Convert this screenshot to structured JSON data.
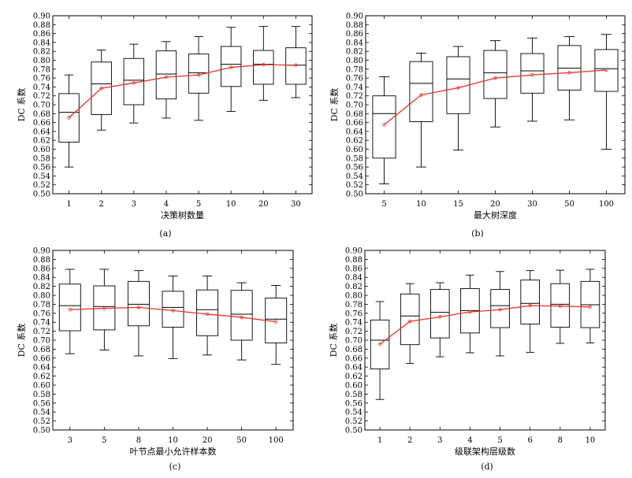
{
  "figure": {
    "captions": [
      "(a)",
      "(b)",
      "(c)",
      "(d)"
    ]
  },
  "colors": {
    "box": "#000000",
    "median": "#000000",
    "mean_line": "#e8332a",
    "mean_marker": "#e8332a"
  },
  "chart_data": [
    {
      "type": "box",
      "caption": "(a)",
      "xlabel": "决策树数量",
      "ylabel": "DC 系数",
      "ylim": [
        0.5,
        0.9
      ],
      "yticks": [
        "0.50",
        "0.52",
        "0.54",
        "0.56",
        "0.58",
        "0.60",
        "0.62",
        "0.64",
        "0.66",
        "0.68",
        "0.70",
        "0.72",
        "0.74",
        "0.76",
        "0.78",
        "0.80",
        "0.82",
        "0.84",
        "0.86",
        "0.88",
        "0.90"
      ],
      "categories": [
        "1",
        "2",
        "3",
        "4",
        "5",
        "10",
        "20",
        "30"
      ],
      "boxes": [
        {
          "whislo": 0.56,
          "q1": 0.616,
          "med": 0.683,
          "q3": 0.725,
          "whishi": 0.767
        },
        {
          "whislo": 0.643,
          "q1": 0.678,
          "med": 0.747,
          "q3": 0.796,
          "whishi": 0.823
        },
        {
          "whislo": 0.659,
          "q1": 0.7,
          "med": 0.755,
          "q3": 0.804,
          "whishi": 0.836
        },
        {
          "whislo": 0.67,
          "q1": 0.713,
          "med": 0.769,
          "q3": 0.821,
          "whishi": 0.842
        },
        {
          "whislo": 0.665,
          "q1": 0.726,
          "med": 0.772,
          "q3": 0.814,
          "whishi": 0.853
        },
        {
          "whislo": 0.685,
          "q1": 0.741,
          "med": 0.791,
          "q3": 0.831,
          "whishi": 0.874
        },
        {
          "whislo": 0.71,
          "q1": 0.746,
          "med": 0.791,
          "q3": 0.822,
          "whishi": 0.876
        },
        {
          "whislo": 0.716,
          "q1": 0.746,
          "med": 0.789,
          "q3": 0.828,
          "whishi": 0.876
        }
      ],
      "means": [
        0.671,
        0.737,
        0.749,
        0.762,
        0.767,
        0.784,
        0.79,
        0.789
      ]
    },
    {
      "type": "box",
      "caption": "(b)",
      "xlabel": "最大树深度",
      "ylabel": "DC 系数",
      "ylim": [
        0.5,
        0.9
      ],
      "yticks": [
        "0.50",
        "0.52",
        "0.54",
        "0.56",
        "0.58",
        "0.60",
        "0.62",
        "0.64",
        "0.66",
        "0.68",
        "0.70",
        "0.72",
        "0.74",
        "0.76",
        "0.78",
        "0.80",
        "0.82",
        "0.84",
        "0.86",
        "0.88",
        "0.90"
      ],
      "categories": [
        "5",
        "10",
        "15",
        "20",
        "30",
        "50",
        "100"
      ],
      "boxes": [
        {
          "whislo": 0.522,
          "q1": 0.58,
          "med": 0.68,
          "q3": 0.72,
          "whishi": 0.763
        },
        {
          "whislo": 0.56,
          "q1": 0.662,
          "med": 0.748,
          "q3": 0.797,
          "whishi": 0.816
        },
        {
          "whislo": 0.598,
          "q1": 0.68,
          "med": 0.758,
          "q3": 0.808,
          "whishi": 0.831
        },
        {
          "whislo": 0.65,
          "q1": 0.714,
          "med": 0.772,
          "q3": 0.822,
          "whishi": 0.844
        },
        {
          "whislo": 0.663,
          "q1": 0.726,
          "med": 0.776,
          "q3": 0.815,
          "whishi": 0.85
        },
        {
          "whislo": 0.666,
          "q1": 0.733,
          "med": 0.782,
          "q3": 0.833,
          "whishi": 0.853
        },
        {
          "whislo": 0.6,
          "q1": 0.73,
          "med": 0.781,
          "q3": 0.824,
          "whishi": 0.858
        }
      ],
      "means": [
        0.655,
        0.722,
        0.738,
        0.76,
        0.767,
        0.772,
        0.778
      ]
    },
    {
      "type": "box",
      "caption": "(c)",
      "xlabel": "叶节点最小允许样本数",
      "ylabel": "DC 系数",
      "ylim": [
        0.5,
        0.9
      ],
      "yticks": [
        "0.50",
        "0.52",
        "0.54",
        "0.56",
        "0.58",
        "0.60",
        "0.62",
        "0.64",
        "0.66",
        "0.68",
        "0.70",
        "0.72",
        "0.74",
        "0.76",
        "0.78",
        "0.80",
        "0.82",
        "0.84",
        "0.86",
        "0.88",
        "0.90"
      ],
      "categories": [
        "3",
        "5",
        "8",
        "10",
        "20",
        "50",
        "100"
      ],
      "boxes": [
        {
          "whislo": 0.67,
          "q1": 0.721,
          "med": 0.777,
          "q3": 0.825,
          "whishi": 0.858
        },
        {
          "whislo": 0.678,
          "q1": 0.723,
          "med": 0.775,
          "q3": 0.821,
          "whishi": 0.858
        },
        {
          "whislo": 0.665,
          "q1": 0.732,
          "med": 0.78,
          "q3": 0.831,
          "whishi": 0.855
        },
        {
          "whislo": 0.659,
          "q1": 0.729,
          "med": 0.773,
          "q3": 0.809,
          "whishi": 0.843
        },
        {
          "whislo": 0.667,
          "q1": 0.71,
          "med": 0.768,
          "q3": 0.812,
          "whishi": 0.843
        },
        {
          "whislo": 0.656,
          "q1": 0.7,
          "med": 0.758,
          "q3": 0.811,
          "whishi": 0.828
        },
        {
          "whislo": 0.646,
          "q1": 0.694,
          "med": 0.747,
          "q3": 0.794,
          "whishi": 0.822
        }
      ],
      "means": [
        0.768,
        0.771,
        0.773,
        0.766,
        0.758,
        0.751,
        0.741
      ]
    },
    {
      "type": "box",
      "caption": "(d)",
      "xlabel": "级联架构层级数",
      "ylabel": "DC 系数",
      "ylim": [
        0.5,
        0.9
      ],
      "yticks": [
        "0.50",
        "0.52",
        "0.54",
        "0.56",
        "0.58",
        "0.60",
        "0.62",
        "0.64",
        "0.66",
        "0.68",
        "0.70",
        "0.72",
        "0.74",
        "0.76",
        "0.78",
        "0.80",
        "0.82",
        "0.84",
        "0.86",
        "0.88",
        "0.90"
      ],
      "categories": [
        "1",
        "2",
        "3",
        "4",
        "5",
        "6",
        "8",
        "10"
      ],
      "boxes": [
        {
          "whislo": 0.568,
          "q1": 0.636,
          "med": 0.7,
          "q3": 0.745,
          "whishi": 0.786
        },
        {
          "whislo": 0.648,
          "q1": 0.69,
          "med": 0.754,
          "q3": 0.803,
          "whishi": 0.826
        },
        {
          "whislo": 0.663,
          "q1": 0.705,
          "med": 0.762,
          "q3": 0.813,
          "whishi": 0.828
        },
        {
          "whislo": 0.672,
          "q1": 0.716,
          "med": 0.766,
          "q3": 0.815,
          "whishi": 0.845
        },
        {
          "whislo": 0.665,
          "q1": 0.728,
          "med": 0.777,
          "q3": 0.813,
          "whishi": 0.853
        },
        {
          "whislo": 0.673,
          "q1": 0.736,
          "med": 0.782,
          "q3": 0.834,
          "whishi": 0.855
        },
        {
          "whislo": 0.693,
          "q1": 0.729,
          "med": 0.78,
          "q3": 0.826,
          "whishi": 0.856
        },
        {
          "whislo": 0.694,
          "q1": 0.728,
          "med": 0.779,
          "q3": 0.831,
          "whishi": 0.858
        }
      ],
      "means": [
        0.691,
        0.742,
        0.752,
        0.763,
        0.768,
        0.777,
        0.776,
        0.774
      ]
    }
  ]
}
